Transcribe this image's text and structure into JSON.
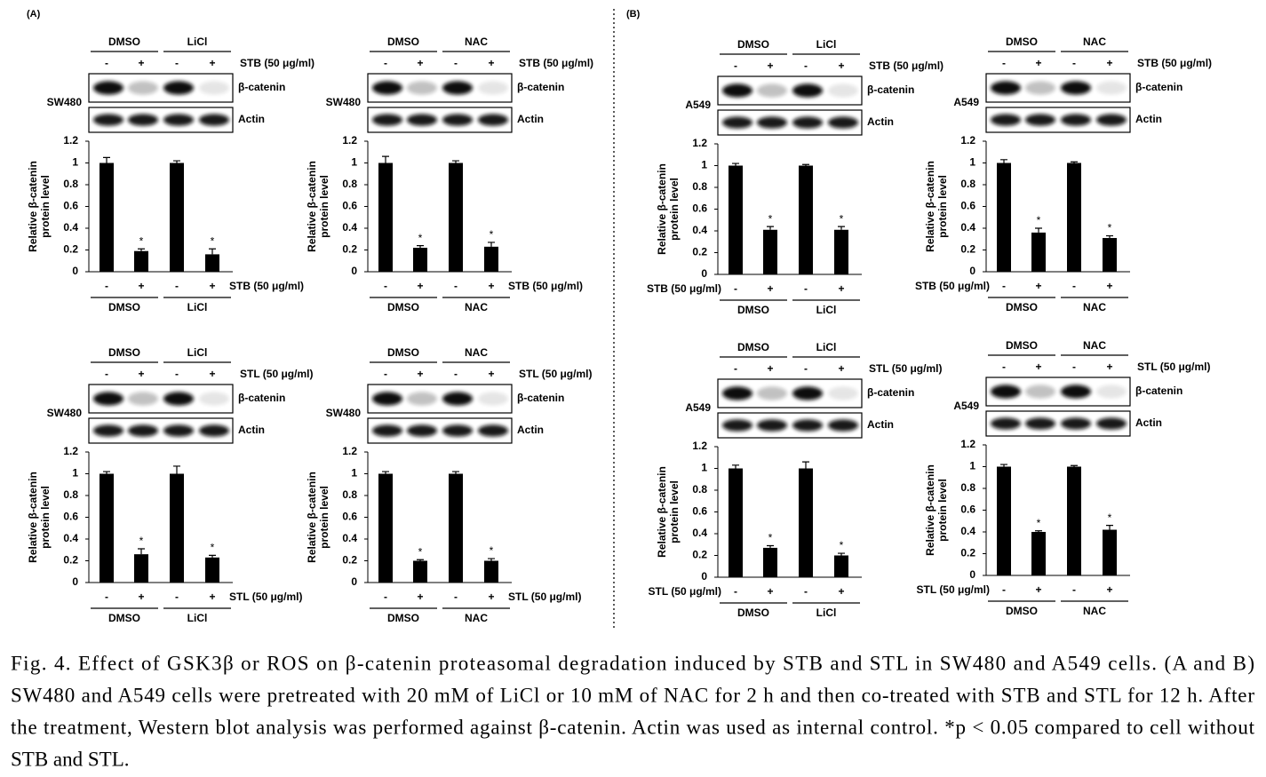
{
  "panel_labels": [
    "(A)",
    "(B)"
  ],
  "chart_data": [
    {
      "type": "bar",
      "cell_line": "SW480",
      "groups": [
        "DMSO",
        "LiCl"
      ],
      "treatment": "STB (50 μg/ml)",
      "blot_labels": [
        "β-catenin",
        "Actin"
      ],
      "ylabel": [
        "Relative β-catenin",
        "protein level"
      ],
      "categories": [
        "-",
        "+",
        "-",
        "+"
      ],
      "values": [
        1,
        0.19,
        1,
        0.16
      ],
      "errors": [
        0.05,
        0.02,
        0.02,
        0.05
      ],
      "significance": [
        null,
        "*",
        null,
        "*"
      ],
      "color": "#000000",
      "ylim": [
        0,
        1.2
      ],
      "yticks": [
        0,
        0.2,
        0.4,
        0.6,
        0.8,
        1,
        1.2
      ]
    },
    {
      "type": "bar",
      "cell_line": "SW480",
      "groups": [
        "DMSO",
        "NAC"
      ],
      "treatment": "STB (50 μg/ml)",
      "blot_labels": [
        "β-catenin",
        "Actin"
      ],
      "ylabel": [
        "Relative β-catenin",
        "protein level"
      ],
      "categories": [
        "-",
        "+",
        "-",
        "+"
      ],
      "values": [
        1,
        0.22,
        1,
        0.23
      ],
      "errors": [
        0.06,
        0.02,
        0.02,
        0.04
      ],
      "significance": [
        null,
        "*",
        null,
        "*"
      ],
      "color": "#000000",
      "ylim": [
        0,
        1.2
      ],
      "yticks": [
        0,
        0.2,
        0.4,
        0.6,
        0.8,
        1,
        1.2
      ]
    },
    {
      "type": "bar",
      "cell_line": "SW480",
      "groups": [
        "DMSO",
        "LiCl"
      ],
      "treatment": "STL (50 μg/ml)",
      "blot_labels": [
        "β-catenin",
        "Actin"
      ],
      "ylabel": [
        "Relative β-catenin",
        "protein level"
      ],
      "categories": [
        "-",
        "+",
        "-",
        "+"
      ],
      "values": [
        1,
        0.26,
        1,
        0.23
      ],
      "errors": [
        0.02,
        0.05,
        0.07,
        0.02
      ],
      "significance": [
        null,
        "*",
        null,
        "*"
      ],
      "color": "#000000",
      "ylim": [
        0,
        1.2
      ],
      "yticks": [
        0,
        0.2,
        0.4,
        0.6,
        0.8,
        1,
        1.2
      ]
    },
    {
      "type": "bar",
      "cell_line": "SW480",
      "groups": [
        "DMSO",
        "NAC"
      ],
      "treatment": "STL (50 μg/ml)",
      "blot_labels": [
        "β-catenin",
        "Actin"
      ],
      "ylabel": [
        "Relative β-catenin",
        "protein level"
      ],
      "categories": [
        "-",
        "+",
        "-",
        "+"
      ],
      "values": [
        1,
        0.2,
        1,
        0.2
      ],
      "errors": [
        0.02,
        0.01,
        0.02,
        0.02
      ],
      "significance": [
        null,
        "*",
        null,
        "*"
      ],
      "color": "#000000",
      "ylim": [
        0,
        1.2
      ],
      "yticks": [
        0,
        0.2,
        0.4,
        0.6,
        0.8,
        1,
        1.2
      ]
    },
    {
      "type": "bar",
      "cell_line": "A549",
      "groups": [
        "DMSO",
        "LiCl"
      ],
      "treatment": "STB (50 μg/ml)",
      "blot_labels": [
        "β-catenin",
        "Actin"
      ],
      "ylabel": [
        "Relative β-catenin",
        "protein level"
      ],
      "categories": [
        "-",
        "+",
        "-",
        "+"
      ],
      "values": [
        1,
        0.41,
        1,
        0.41
      ],
      "errors": [
        0.02,
        0.03,
        0.01,
        0.03
      ],
      "significance": [
        null,
        "*",
        null,
        "*"
      ],
      "color": "#000000",
      "ylim": [
        0,
        1.2
      ],
      "yticks": [
        0,
        0.2,
        0.4,
        0.6,
        0.8,
        1,
        1.2
      ]
    },
    {
      "type": "bar",
      "cell_line": "A549",
      "groups": [
        "DMSO",
        "NAC"
      ],
      "treatment": "STB (50 μg/ml)",
      "blot_labels": [
        "β-catenin",
        "Actin"
      ],
      "ylabel": [
        "Relative β-catenin",
        "protein level"
      ],
      "categories": [
        "-",
        "+",
        "-",
        "+"
      ],
      "values": [
        1,
        0.36,
        1,
        0.31
      ],
      "errors": [
        0.03,
        0.04,
        0.01,
        0.02
      ],
      "significance": [
        null,
        "*",
        null,
        "*"
      ],
      "color": "#000000",
      "ylim": [
        0,
        1.2
      ],
      "yticks": [
        0,
        0.2,
        0.4,
        0.6,
        0.8,
        1,
        1.2
      ]
    },
    {
      "type": "bar",
      "cell_line": "A549",
      "groups": [
        "DMSO",
        "LiCl"
      ],
      "treatment": "STL (50 μg/ml)",
      "blot_labels": [
        "β-catenin",
        "Actin"
      ],
      "ylabel": [
        "Relative β-catenin",
        "protein level"
      ],
      "categories": [
        "-",
        "+",
        "-",
        "+"
      ],
      "values": [
        1,
        0.27,
        1,
        0.2
      ],
      "errors": [
        0.03,
        0.02,
        0.06,
        0.02
      ],
      "significance": [
        null,
        "*",
        null,
        "*"
      ],
      "color": "#000000",
      "ylim": [
        0,
        1.2
      ],
      "yticks": [
        0,
        0.2,
        0.4,
        0.6,
        0.8,
        1,
        1.2
      ]
    },
    {
      "type": "bar",
      "cell_line": "A549",
      "groups": [
        "DMSO",
        "NAC"
      ],
      "treatment": "STL (50 μg/ml)",
      "blot_labels": [
        "β-catenin",
        "Actin"
      ],
      "ylabel": [
        "Relative β-catenin",
        "protein level"
      ],
      "categories": [
        "-",
        "+",
        "-",
        "+"
      ],
      "values": [
        1,
        0.4,
        1,
        0.42
      ],
      "errors": [
        0.02,
        0.01,
        0.01,
        0.04
      ],
      "significance": [
        null,
        "*",
        null,
        "*"
      ],
      "color": "#000000",
      "ylim": [
        0,
        1.2
      ],
      "yticks": [
        0,
        0.2,
        0.4,
        0.6,
        0.8,
        1,
        1.2
      ]
    }
  ],
  "caption": [
    "Fig. 4. Effect of GSK3β or ROS on β-catenin proteasomal degradation induced by STB and STL in SW480 and A549 cells. (A and B)",
    "SW480 and A549 cells were pretreated with 20 mM of LiCl or 10 mM of NAC for 2 h and then co-treated with STB and STL for 12 h. After",
    "the treatment, Western blot analysis was performed against β-catenin. Actin was used as internal control. *p < 0.05 compared to cell without",
    "STB and STL."
  ]
}
